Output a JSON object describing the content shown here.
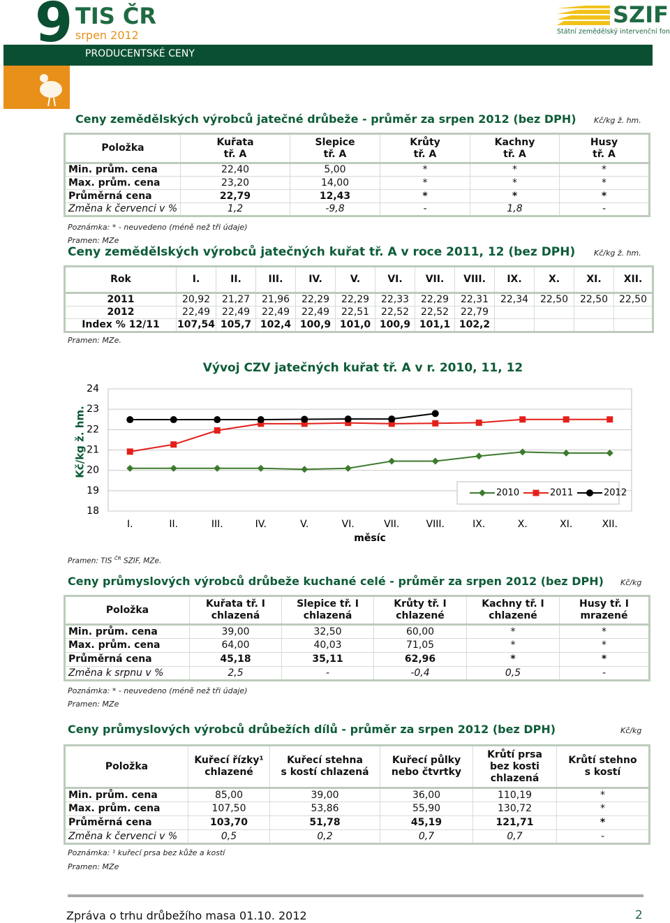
{
  "header": {
    "number": "9",
    "brand": "TIS ČR",
    "date": "srpen 2012",
    "section": "PRODUCENTSKÉ CENY",
    "logo": "SZIF",
    "logo_sub": "Státní zemědělský intervenční fond"
  },
  "table1": {
    "title": "Ceny zemědělských výrobců jatečné drůbeže - průměr za srpen 2012 (bez DPH)",
    "unit": "Kč/kg ž. hm.",
    "columns": [
      [
        "Položka"
      ],
      [
        "Kuřata",
        "tř. A"
      ],
      [
        "Slepice",
        "tř. A"
      ],
      [
        "Krůty",
        "tř. A"
      ],
      [
        "Kachny",
        "tř. A"
      ],
      [
        "Husy",
        "tř. A"
      ]
    ],
    "rows": [
      [
        "Min. prům. cena",
        "22,40",
        "5,00",
        "*",
        "*",
        "*"
      ],
      [
        "Max. prům. cena",
        "23,20",
        "14,00",
        "*",
        "*",
        "*"
      ],
      [
        "Průměrná  cena",
        "22,79",
        "12,43",
        "*",
        "*",
        "*"
      ],
      [
        "Změna k červenci  v %",
        "1,2",
        "-9,8",
        "-",
        "1,8",
        "-"
      ]
    ],
    "note": "Poznámka: * - neuvedeno (méně než tři údaje)",
    "source": "Pramen: MZe"
  },
  "table2": {
    "title": "Ceny zemědělských výrobců jatečných kuřat tř. A v roce 2011, 12 (bez DPH)",
    "unit": "Kč/kg ž. hm.",
    "columns": [
      "Rok",
      "I.",
      "II.",
      "III.",
      "IV.",
      "V.",
      "VI.",
      "VII.",
      "VIII.",
      "IX.",
      "X.",
      "XI.",
      "XII."
    ],
    "rows": [
      [
        "2011",
        "20,92",
        "21,27",
        "21,96",
        "22,29",
        "22,29",
        "22,33",
        "22,29",
        "22,31",
        "22,34",
        "22,50",
        "22,50",
        "22,50"
      ],
      [
        "2012",
        "22,49",
        "22,49",
        "22,49",
        "22,49",
        "22,51",
        "22,52",
        "22,52",
        "22,79"
      ],
      [
        "Index % 12/11",
        "107,54",
        "105,7",
        "102,4",
        "100,9",
        "101,0",
        "100,9",
        "101,1",
        "102,2"
      ]
    ],
    "source": "Pramen: MZe."
  },
  "chart_data": {
    "type": "line",
    "title": "Vývoj CZV jatečných kuřat tř. A v r. 2010, 11, 12",
    "x_label": "měsíc",
    "y_label": "Kč/kg ž. hm.",
    "categories": [
      "I.",
      "II.",
      "III.",
      "IV.",
      "V.",
      "VI.",
      "VII.",
      "VIII.",
      "IX.",
      "X.",
      "XI.",
      "XII."
    ],
    "series": [
      {
        "name": "2010",
        "color": "#3d7a2e",
        "marker": "diamond",
        "values": [
          20.1,
          20.1,
          20.1,
          20.1,
          20.05,
          20.1,
          20.45,
          20.45,
          20.7,
          20.9,
          20.85,
          20.85
        ]
      },
      {
        "name": "2011",
        "color": "#e3201b",
        "marker": "square",
        "values": [
          20.92,
          21.27,
          21.96,
          22.29,
          22.29,
          22.33,
          22.29,
          22.31,
          22.34,
          22.5,
          22.5,
          22.5
        ]
      },
      {
        "name": "2012",
        "color": "#000000",
        "marker": "circle",
        "values": [
          22.49,
          22.49,
          22.49,
          22.49,
          22.51,
          22.52,
          22.52,
          22.79,
          null,
          null,
          null,
          null
        ]
      }
    ],
    "ylim": [
      18,
      24
    ],
    "yticks": [
      18,
      19,
      20,
      21,
      22,
      23,
      24
    ],
    "grid": true,
    "legend": "bottom-right",
    "source": [
      "Pramen: TIS",
      "ČR",
      "SZIF, MZe."
    ]
  },
  "table3": {
    "title": "Ceny průmyslových výrobců drůbeže kuchané celé - průměr za srpen 2012 (bez DPH)",
    "unit": "Kč/kg",
    "columns": [
      [
        "Položka"
      ],
      [
        "Kuřata tř. I",
        "chlazená"
      ],
      [
        "Slepice tř. I",
        "chlazená"
      ],
      [
        "Krůty tř. I",
        "chlazené"
      ],
      [
        "Kachny tř. I",
        "chlazené"
      ],
      [
        "Husy tř. I",
        "mrazené"
      ]
    ],
    "rows": [
      [
        "Min. prům. cena",
        "39,00",
        "32,50",
        "60,00",
        "*",
        "*"
      ],
      [
        "Max. prům. cena",
        "64,00",
        "40,03",
        "71,05",
        "*",
        "*"
      ],
      [
        "Průměrná cena",
        "45,18",
        "35,11",
        "62,96",
        "*",
        "*"
      ],
      [
        "Změna k srpnu v %",
        "2,5",
        "-",
        "-0,4",
        "0,5",
        "-"
      ]
    ],
    "note": "Poznámka: * - neuvedeno (méně než tři údaje)",
    "source": "Pramen: MZe"
  },
  "table4": {
    "title": "Ceny průmyslových výrobců drůbežích dílů - průměr za srpen 2012 (bez DPH)",
    "unit": "Kč/kg",
    "columns": [
      [
        "Položka"
      ],
      [
        "Kuřecí řízky¹",
        "chlazené"
      ],
      [
        "Kuřecí stehna",
        "s kostí chlazená"
      ],
      [
        "Kuřecí půlky",
        "nebo čtvrtky"
      ],
      [
        "Krůtí prsa",
        "bez kosti",
        "chlazená"
      ],
      [
        "Krůtí stehno",
        "s kostí"
      ]
    ],
    "rows": [
      [
        "Min. prům. cena",
        "85,00",
        "39,00",
        "36,00",
        "110,19",
        "*"
      ],
      [
        "Max. prům. cena",
        "107,50",
        "53,86",
        "55,90",
        "130,72",
        "*"
      ],
      [
        "Průměrná cena",
        "103,70",
        "51,78",
        "45,19",
        "121,71",
        "*"
      ],
      [
        "Změna k červenci v %",
        "0,5",
        "0,2",
        "0,7",
        "0,7",
        "-"
      ]
    ],
    "note": "Poznámka: ¹ kuřecí prsa bez kůže a kostí",
    "source": "Pramen: MZe"
  },
  "footer": {
    "text": "Zpráva o trhu drůbežího masa 01.10. 2012",
    "page": "2"
  }
}
